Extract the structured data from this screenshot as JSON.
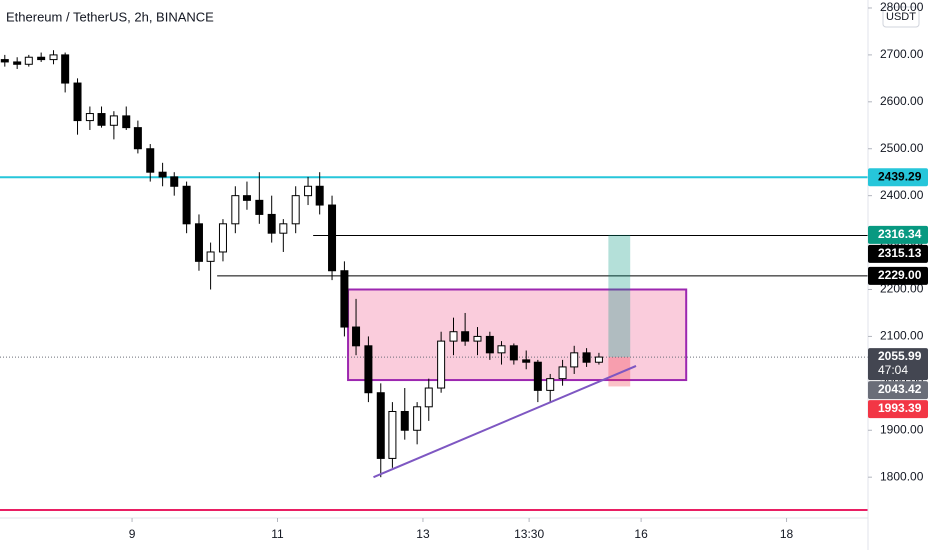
{
  "chart_data": {
    "type": "candlestick",
    "title": "Ethereum / TetherUS, 2h, BINANCE",
    "currency": "USDT",
    "xlim": [
      7.184,
      19.12
    ],
    "xticks": [
      9,
      11,
      13,
      {
        "value": 14.46,
        "label": "13:30"
      },
      16,
      18
    ],
    "ylim": [
      1713,
      2817
    ],
    "yticks": [
      {
        "value": 1800,
        "label": "1800.00"
      },
      {
        "value": 1900,
        "label": "1900.00"
      },
      {
        "value": 2000,
        "label": "2000.00"
      },
      {
        "value": 2100,
        "label": "2100.00"
      },
      {
        "value": 2200,
        "label": "2200.00"
      },
      {
        "value": 2300,
        "label": "2300.00"
      },
      {
        "value": 2400,
        "label": "2400.00"
      },
      {
        "value": 2500,
        "label": "2500.00"
      },
      {
        "value": 2600,
        "label": "2600.00"
      },
      {
        "value": 2700,
        "label": "2700.00"
      },
      {
        "value": 2800,
        "label": "2800.00"
      }
    ],
    "up_color": "#ffffff",
    "down_color": "#000000",
    "x": [
      7.25,
      7.42,
      7.58,
      7.75,
      7.92,
      8.08,
      8.25,
      8.42,
      8.58,
      8.75,
      8.92,
      9.08,
      9.25,
      9.42,
      9.58,
      9.75,
      9.92,
      10.08,
      10.25,
      10.42,
      10.58,
      10.75,
      10.92,
      11.08,
      11.25,
      11.42,
      11.58,
      11.75,
      11.92,
      12.08,
      12.25,
      12.42,
      12.58,
      12.75,
      12.92,
      13.08,
      13.25,
      13.42,
      13.58,
      13.75,
      13.92,
      14.08,
      14.25,
      14.42,
      14.58,
      14.75,
      14.92,
      15.08,
      15.25,
      15.42
    ],
    "open": [
      2690,
      2685,
      2680,
      2695,
      2690,
      2700,
      2640,
      2560,
      2575,
      2550,
      2570,
      2545,
      2500,
      2450,
      2440,
      2420,
      2340,
      2260,
      2280,
      2340,
      2400,
      2390,
      2360,
      2320,
      2340,
      2400,
      2420,
      2380,
      2240,
      2120,
      2080,
      1980,
      1840,
      1940,
      1900,
      1950,
      1990,
      2090,
      2110,
      2090,
      2100,
      2065,
      2080,
      2050,
      2045,
      1985,
      2010,
      2035,
      2065,
      2045
    ],
    "high": [
      2700,
      2695,
      2700,
      2705,
      2710,
      2705,
      2650,
      2590,
      2590,
      2580,
      2590,
      2560,
      2510,
      2470,
      2450,
      2430,
      2360,
      2300,
      2350,
      2420,
      2430,
      2450,
      2400,
      2350,
      2420,
      2440,
      2450,
      2400,
      2260,
      2180,
      2100,
      2000,
      1960,
      1990,
      1960,
      2010,
      2110,
      2140,
      2150,
      2120,
      2110,
      2090,
      2085,
      2070,
      2050,
      2020,
      2050,
      2080,
      2075,
      2065
    ],
    "low": [
      2675,
      2670,
      2675,
      2685,
      2680,
      2620,
      2530,
      2540,
      2545,
      2520,
      2540,
      2490,
      2430,
      2420,
      2400,
      2320,
      2240,
      2200,
      2260,
      2320,
      2370,
      2340,
      2300,
      2280,
      2320,
      2380,
      2360,
      2220,
      2100,
      2060,
      1960,
      1800,
      1820,
      1880,
      1870,
      1920,
      1980,
      2060,
      2080,
      2060,
      2050,
      2040,
      2040,
      2030,
      1960,
      1960,
      1995,
      2020,
      2035,
      2040
    ],
    "close": [
      2685,
      2680,
      2695,
      2690,
      2700,
      2640,
      2560,
      2575,
      2550,
      2570,
      2545,
      2500,
      2450,
      2440,
      2420,
      2340,
      2260,
      2280,
      2340,
      2400,
      2390,
      2360,
      2320,
      2340,
      2400,
      2420,
      2380,
      2240,
      2120,
      2080,
      1980,
      1840,
      1940,
      1900,
      1950,
      1990,
      2090,
      2110,
      2090,
      2100,
      2065,
      2080,
      2050,
      2045,
      1985,
      2010,
      2035,
      2065,
      2045,
      2056
    ],
    "levels": [
      {
        "value": 2439.29,
        "x_start": 7.184,
        "color": "#26c6da"
      },
      {
        "value": 1730,
        "x_start": 7.184,
        "color": "#e91e63"
      },
      {
        "value": 2315.13,
        "x_start": 11.49,
        "color": "#000000"
      },
      {
        "value": 2229,
        "x_start": 10.17,
        "color": "#000000"
      }
    ],
    "current_price": 2055.99,
    "zone": {
      "x": [
        11.97,
        16.62
      ],
      "y": [
        2007,
        2200
      ],
      "fill": "#f8bbd0",
      "stroke": "#9c27b0"
    },
    "trend_line": {
      "x": [
        12.32,
        15.93
      ],
      "y": [
        1800,
        2037
      ],
      "color": "#7e57c2"
    },
    "position": {
      "x": [
        15.55,
        15.85
      ],
      "target": 2316.34,
      "entry": 2055.99,
      "stop": 1993.39
    },
    "countdown": "47:04",
    "price_labels": [
      {
        "value": 2439.29,
        "color": "#26c6da",
        "text_color": "#000000"
      },
      {
        "value": 2316.34,
        "color": "#089981",
        "text_color": "#ffffff"
      },
      {
        "value": 2315.13,
        "color": "#000000",
        "text_color": "#ffffff"
      },
      {
        "value": 2229,
        "label": "2229.00",
        "color": "#000000",
        "text_color": "#ffffff"
      },
      {
        "value": 2055.99,
        "color": "#434651",
        "text_color": "#ffffff"
      },
      {
        "value": 2043.42,
        "color": "#6a6d78",
        "text_color": "#ffffff"
      },
      {
        "value": 1993.39,
        "color": "#f23645",
        "text_color": "#ffffff"
      }
    ]
  }
}
